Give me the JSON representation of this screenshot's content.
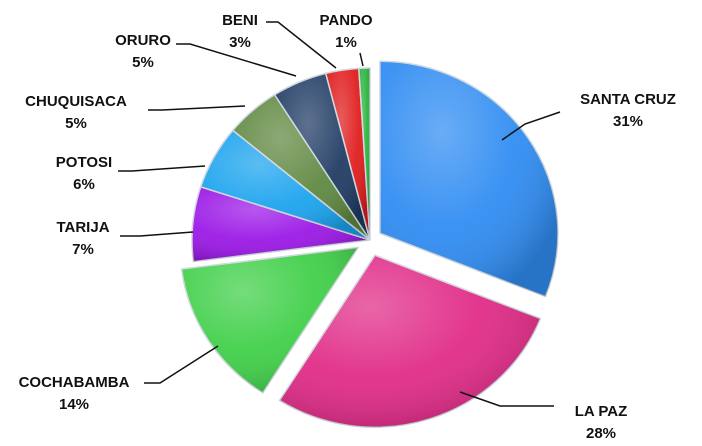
{
  "chart_data": {
    "type": "pie",
    "title": "",
    "slices": [
      {
        "label": "SANTA CRUZ",
        "value": 31,
        "value_label": "31%",
        "color": "#2f8cf2"
      },
      {
        "label": "LA PAZ",
        "value": 28,
        "value_label": "28%",
        "color": "#e02a86"
      },
      {
        "label": "COCHABAMBA",
        "value": 14,
        "value_label": "14%",
        "color": "#3fcf48"
      },
      {
        "label": "TARIJA",
        "value": 7,
        "value_label": "7%",
        "color": "#9b17e6"
      },
      {
        "label": "POTOSI",
        "value": 6,
        "value_label": "6%",
        "color": "#1aa3ee"
      },
      {
        "label": "CHUQUISACA",
        "value": 5,
        "value_label": "5%",
        "color": "#5f8840"
      },
      {
        "label": "ORURO",
        "value": 5,
        "value_label": "5%",
        "color": "#1f3b63"
      },
      {
        "label": "BENI",
        "value": 3,
        "value_label": "3%",
        "color": "#e01b1b"
      },
      {
        "label": "PANDO",
        "value": 1,
        "value_label": "1%",
        "color": "#26b43a"
      }
    ],
    "legend": "none",
    "exploded_slices": [
      "SANTA CRUZ",
      "LA PAZ",
      "COCHABAMBA"
    ]
  }
}
